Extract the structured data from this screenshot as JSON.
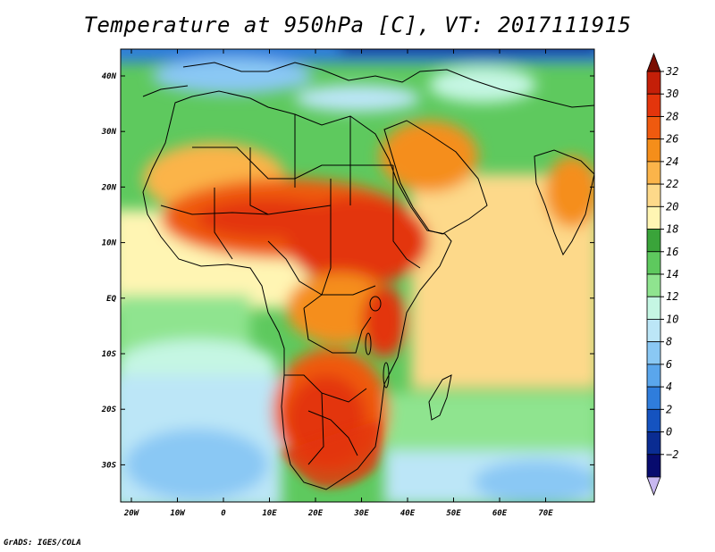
{
  "title": "Temperature at 950hPa [C], VT: 2017111915",
  "footer": "GrADS: IGES/COLA",
  "map": {
    "lat_labels": [
      "40N",
      "30N",
      "20N",
      "10N",
      "EQ",
      "10S",
      "20S",
      "30S"
    ],
    "lon_labels": [
      "20W",
      "10W",
      "0",
      "10E",
      "20E",
      "30E",
      "40E",
      "50E",
      "60E",
      "70E"
    ]
  },
  "colorbar": {
    "labels": [
      "32",
      "30",
      "28",
      "26",
      "24",
      "22",
      "20",
      "18",
      "16",
      "14",
      "12",
      "10",
      "8",
      "6",
      "4",
      "2",
      "0",
      "−2"
    ],
    "colors": [
      "#7a0d00",
      "#c41f08",
      "#e3350c",
      "#ef5a0f",
      "#f58e1a",
      "#fbb44a",
      "#fdd98a",
      "#fff5b3",
      "#3aa43a",
      "#5ec95e",
      "#8fe48f",
      "#c5f6e3",
      "#bce6f7",
      "#8ac8f4",
      "#5aa6ec",
      "#2f7ddc",
      "#1553c0",
      "#0a2c92",
      "#070b6e",
      "#c8b8f0"
    ]
  }
}
